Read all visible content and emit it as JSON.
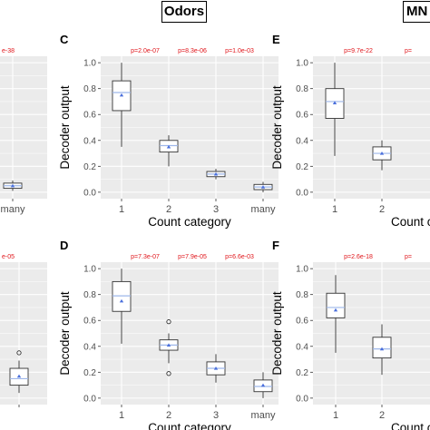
{
  "headers": {
    "odors": "Odors",
    "mn": "MN"
  },
  "colors": {
    "panel_bg": "#ebebeb",
    "grid": "#ffffff",
    "box": "#ffffff",
    "box_stroke": "#333333",
    "mean_marker": "#4a6fdc",
    "median": "#9eb7ea",
    "pvalue": "#e0161b",
    "axis_text": "#4d4d4d"
  },
  "chart_data": [
    {
      "id": "A",
      "label": "",
      "type": "box",
      "partial": true,
      "categories": [
        "many"
      ],
      "xlabel": "",
      "ylabel": "",
      "ylim": [
        -0.05,
        1.05
      ],
      "grid": true,
      "pvalues": [
        "e-38"
      ],
      "boxes": [
        {
          "category": "many",
          "min": 0.01,
          "q1": 0.03,
          "median": 0.05,
          "q3": 0.07,
          "max": 0.09,
          "mean": 0.05,
          "outliers": []
        }
      ]
    },
    {
      "id": "C",
      "label": "C",
      "type": "box",
      "categories": [
        "1",
        "2",
        "3",
        "many"
      ],
      "xlabel": "Count category",
      "ylabel": "Decoder output",
      "yticks": [
        "0.0",
        "0.2",
        "0.4",
        "0.6",
        "0.8",
        "1.0"
      ],
      "ylim": [
        -0.05,
        1.05
      ],
      "grid": true,
      "pvalues": [
        "p=2.0e-07",
        "p=8.3e-06",
        "p=1.0e-03"
      ],
      "boxes": [
        {
          "category": "1",
          "min": 0.35,
          "q1": 0.63,
          "median": 0.77,
          "q3": 0.86,
          "max": 1.0,
          "mean": 0.75,
          "outliers": []
        },
        {
          "category": "2",
          "min": 0.2,
          "q1": 0.31,
          "median": 0.36,
          "q3": 0.4,
          "max": 0.44,
          "mean": 0.35,
          "outliers": []
        },
        {
          "category": "3",
          "min": 0.1,
          "q1": 0.12,
          "median": 0.14,
          "q3": 0.16,
          "max": 0.18,
          "mean": 0.14,
          "outliers": []
        },
        {
          "category": "many",
          "min": 0.0,
          "q1": 0.02,
          "median": 0.04,
          "q3": 0.06,
          "max": 0.08,
          "mean": 0.04,
          "outliers": []
        }
      ]
    },
    {
      "id": "E",
      "label": "E",
      "type": "box",
      "partial": true,
      "categories": [
        "1",
        "2"
      ],
      "xlabel": "Count c",
      "ylabel": "Decoder output",
      "yticks": [
        "0.0",
        "0.2",
        "0.4",
        "0.6",
        "0.8",
        "1.0"
      ],
      "ylim": [
        -0.05,
        1.05
      ],
      "grid": true,
      "pvalues": [
        "p=9.7e-22",
        "p="
      ],
      "boxes": [
        {
          "category": "1",
          "min": 0.28,
          "q1": 0.57,
          "median": 0.7,
          "q3": 0.8,
          "max": 1.0,
          "mean": 0.69,
          "outliers": []
        },
        {
          "category": "2",
          "min": 0.17,
          "q1": 0.25,
          "median": 0.3,
          "q3": 0.35,
          "max": 0.4,
          "mean": 0.3,
          "outliers": []
        }
      ]
    },
    {
      "id": "B",
      "label": "",
      "type": "box",
      "partial": true,
      "categories": [
        ""
      ],
      "xlabel": "",
      "ylabel": "",
      "ylim": [
        -0.05,
        1.05
      ],
      "grid": true,
      "pvalues": [
        "e-05"
      ],
      "boxes": [
        {
          "category": "",
          "min": 0.04,
          "q1": 0.1,
          "median": 0.15,
          "q3": 0.23,
          "max": 0.29,
          "mean": 0.17,
          "outliers": [
            0.35
          ]
        }
      ]
    },
    {
      "id": "D",
      "label": "D",
      "type": "box",
      "categories": [
        "1",
        "2",
        "3",
        "many"
      ],
      "xlabel": "Count category",
      "ylabel": "Decoder output",
      "yticks": [
        "0.0",
        "0.2",
        "0.4",
        "0.6",
        "0.8",
        "1.0"
      ],
      "ylim": [
        -0.05,
        1.05
      ],
      "grid": true,
      "pvalues": [
        "p=7.3e-07",
        "p=7.9e-05",
        "p=6.6e-03"
      ],
      "boxes": [
        {
          "category": "1",
          "min": 0.42,
          "q1": 0.67,
          "median": 0.79,
          "q3": 0.9,
          "max": 1.0,
          "mean": 0.75,
          "outliers": []
        },
        {
          "category": "2",
          "min": 0.27,
          "q1": 0.37,
          "median": 0.41,
          "q3": 0.45,
          "max": 0.5,
          "mean": 0.41,
          "outliers": [
            0.59,
            0.19
          ]
        },
        {
          "category": "3",
          "min": 0.12,
          "q1": 0.18,
          "median": 0.23,
          "q3": 0.28,
          "max": 0.34,
          "mean": 0.23,
          "outliers": []
        },
        {
          "category": "many",
          "min": 0.0,
          "q1": 0.05,
          "median": 0.09,
          "q3": 0.14,
          "max": 0.2,
          "mean": 0.1,
          "outliers": []
        }
      ]
    },
    {
      "id": "F",
      "label": "F",
      "type": "box",
      "partial": true,
      "categories": [
        "1",
        "2"
      ],
      "xlabel": "Count c",
      "ylabel": "Decoder output",
      "yticks": [
        "0.0",
        "0.2",
        "0.4",
        "0.6",
        "0.8",
        "1.0"
      ],
      "ylim": [
        -0.05,
        1.05
      ],
      "grid": true,
      "pvalues": [
        "p=2.6e-18",
        "p="
      ],
      "boxes": [
        {
          "category": "1",
          "min": 0.35,
          "q1": 0.62,
          "median": 0.7,
          "q3": 0.81,
          "max": 0.95,
          "mean": 0.68,
          "outliers": []
        },
        {
          "category": "2",
          "min": 0.18,
          "q1": 0.31,
          "median": 0.38,
          "q3": 0.47,
          "max": 0.57,
          "mean": 0.38,
          "outliers": []
        }
      ]
    }
  ]
}
